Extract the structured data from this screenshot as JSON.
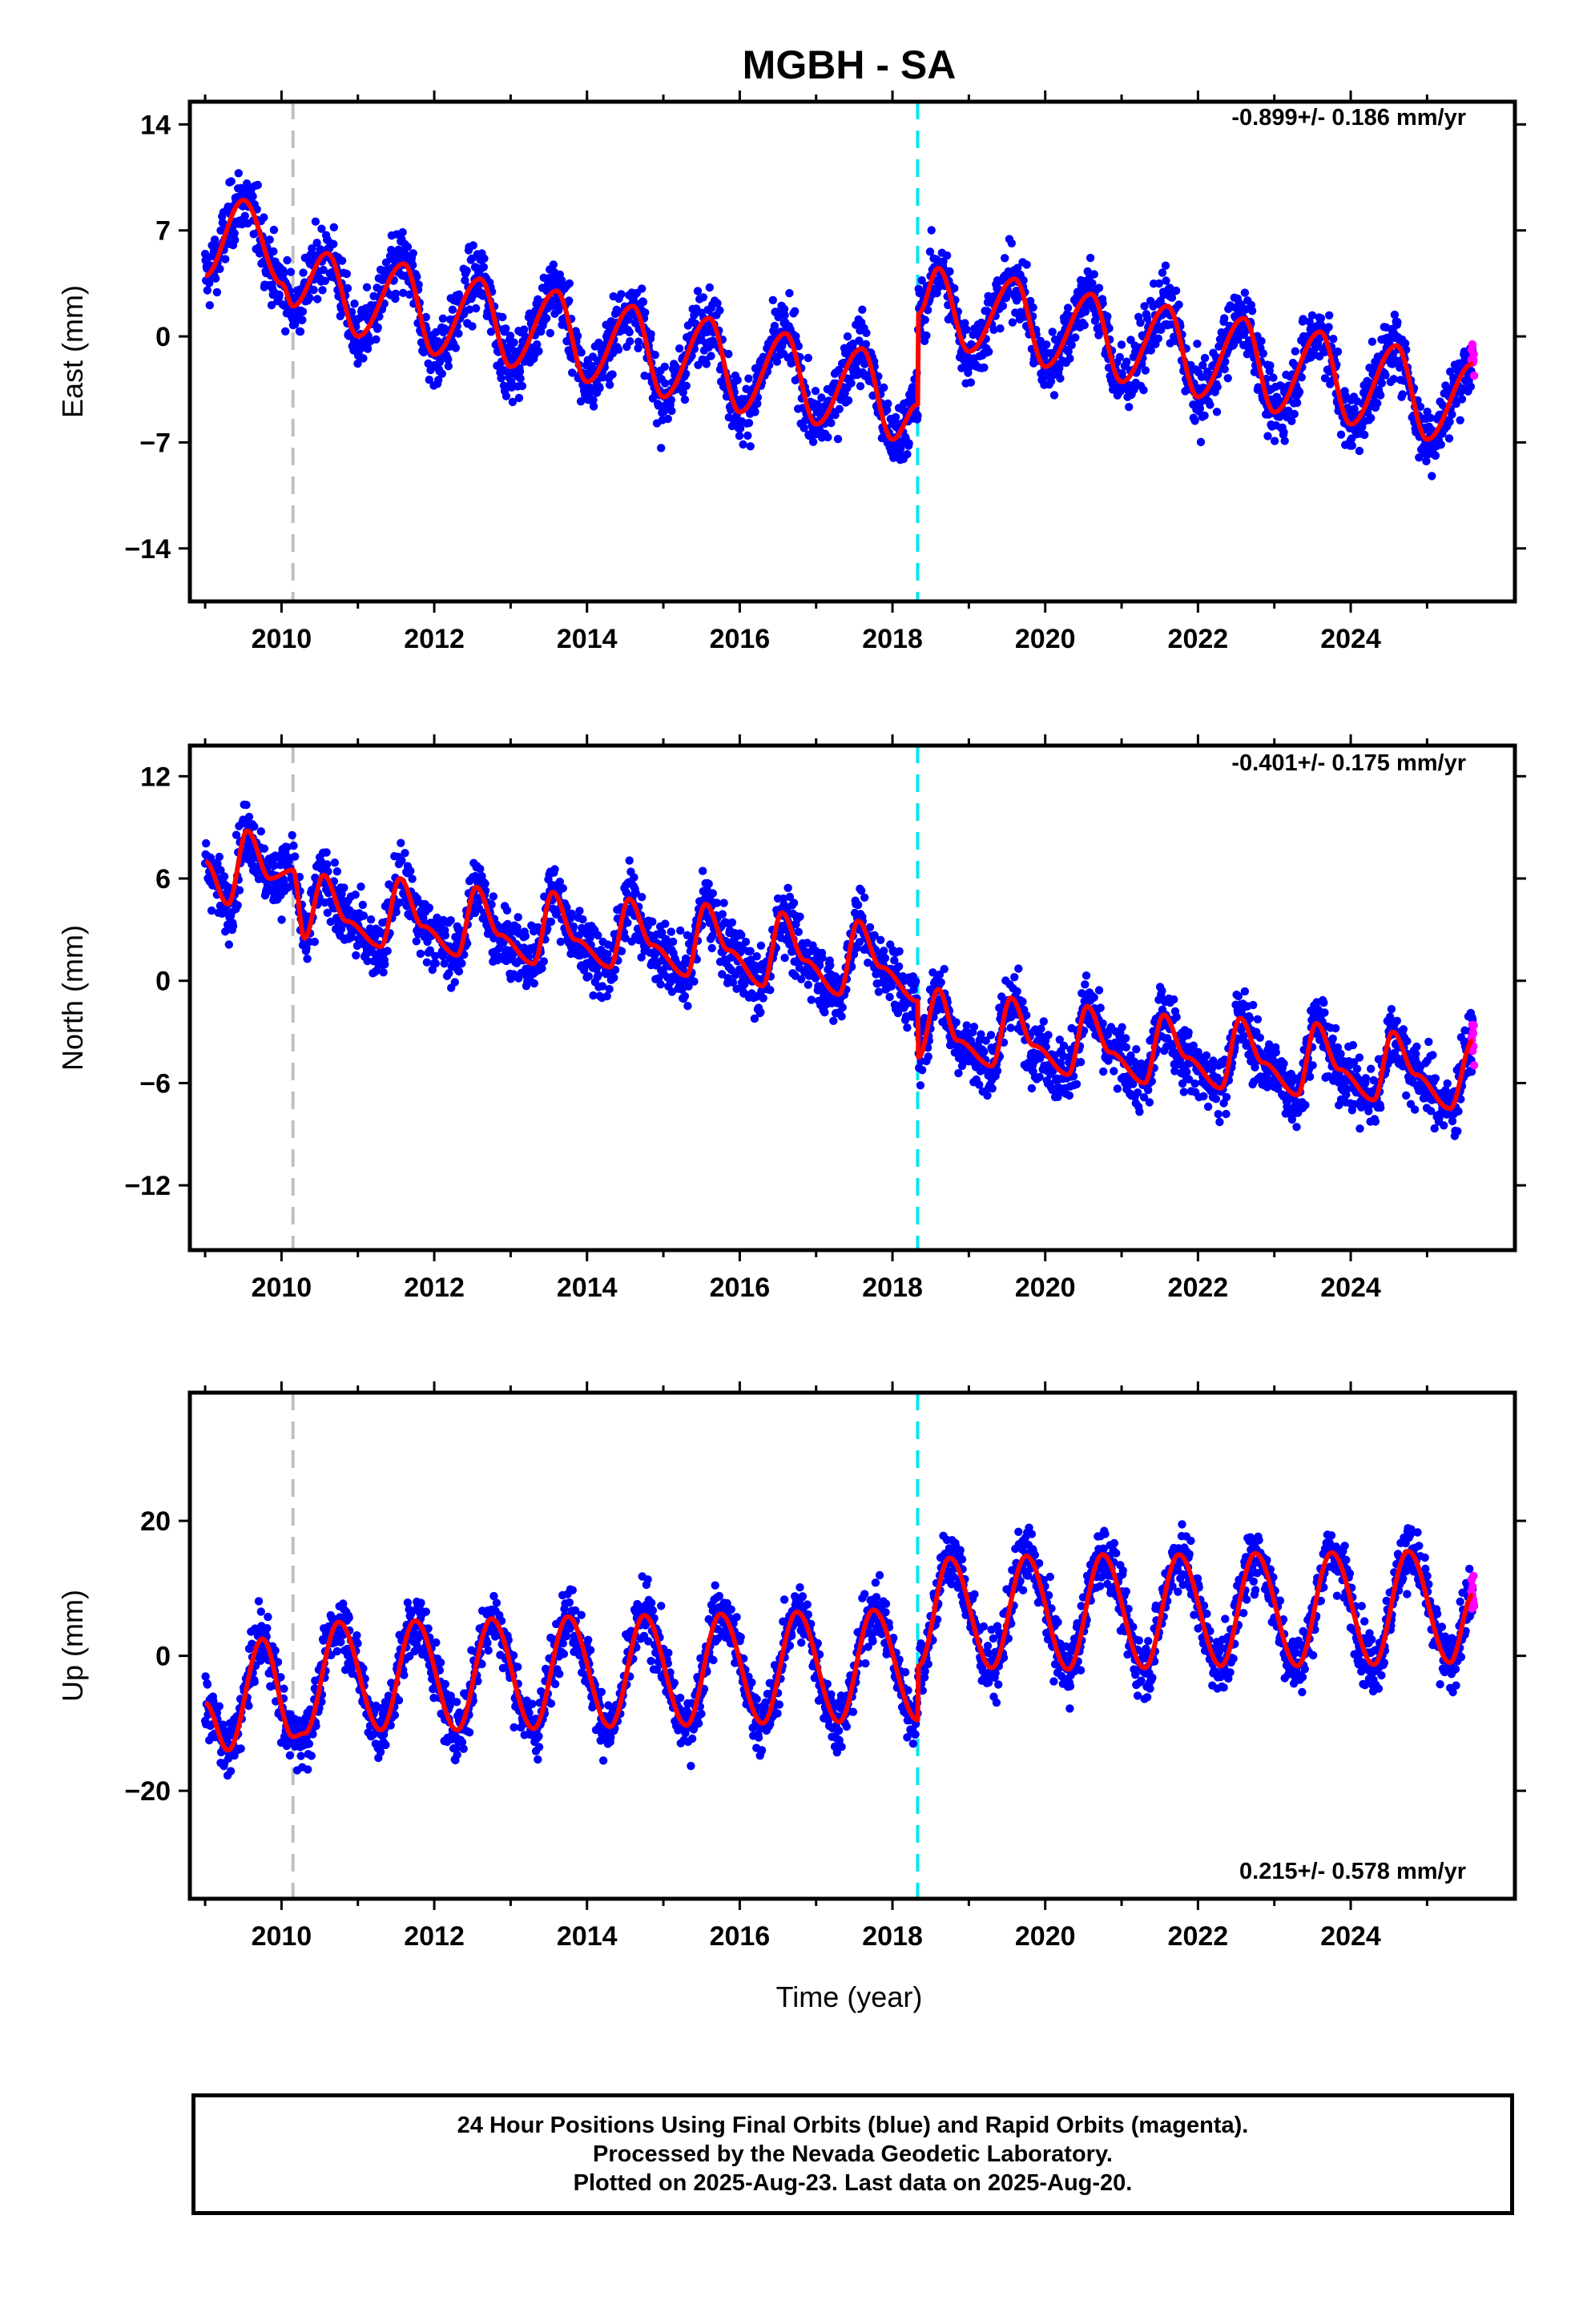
{
  "title": "MGBH - SA",
  "xlabel": "Time (year)",
  "colors": {
    "final_orbits": "#0000ff",
    "rapid_orbits": "#ff00ff",
    "model_fit": "#ff0000",
    "event_gray": "#c0c0c0",
    "event_cyan": "#00e5ee"
  },
  "footer": {
    "line1": "24 Hour Positions Using Final Orbits (blue) and Rapid Orbits (magenta).",
    "line2": "Processed by the Nevada Geodetic Laboratory.",
    "line3": "Plotted on 2025-Aug-23. Last data on 2025-Aug-20."
  },
  "chart_data": [
    {
      "type": "scatter",
      "ylabel": "East (mm)",
      "rate_label": "-0.899+/- 0.186 mm/yr",
      "xlim": [
        2008.8,
        2026.15
      ],
      "ylim": [
        -17.5,
        15.5
      ],
      "yticks": [
        14,
        7,
        0,
        -7,
        -14
      ],
      "xticks": [
        2010,
        2012,
        2014,
        2016,
        2018,
        2020,
        2022,
        2024
      ],
      "event_lines": [
        {
          "x": 2010.15,
          "color": "gray"
        },
        {
          "x": 2018.33,
          "color": "cyan"
        }
      ],
      "model_fit": [
        {
          "x": 2009.0,
          "y": 4.0
        },
        {
          "x": 2009.5,
          "y": 9.0
        },
        {
          "x": 2010.0,
          "y": 3.5
        },
        {
          "x": 2010.15,
          "y": 2.0
        },
        {
          "x": 2010.6,
          "y": 5.5
        },
        {
          "x": 2011.0,
          "y": 0.0
        },
        {
          "x": 2011.6,
          "y": 4.8
        },
        {
          "x": 2012.0,
          "y": -1.2
        },
        {
          "x": 2012.6,
          "y": 3.8
        },
        {
          "x": 2013.0,
          "y": -2.0
        },
        {
          "x": 2013.6,
          "y": 3.0
        },
        {
          "x": 2014.0,
          "y": -3.0
        },
        {
          "x": 2014.6,
          "y": 2.0
        },
        {
          "x": 2015.0,
          "y": -4.0
        },
        {
          "x": 2015.6,
          "y": 1.2
        },
        {
          "x": 2016.0,
          "y": -5.0
        },
        {
          "x": 2016.6,
          "y": 0.2
        },
        {
          "x": 2017.0,
          "y": -5.8
        },
        {
          "x": 2017.6,
          "y": -0.8
        },
        {
          "x": 2018.0,
          "y": -6.8
        },
        {
          "x": 2018.33,
          "y": -4.5
        },
        {
          "x": 2018.34,
          "y": 1.5
        },
        {
          "x": 2018.6,
          "y": 4.5
        },
        {
          "x": 2019.0,
          "y": -1.0
        },
        {
          "x": 2019.6,
          "y": 3.8
        },
        {
          "x": 2020.0,
          "y": -2.0
        },
        {
          "x": 2020.6,
          "y": 2.8
        },
        {
          "x": 2021.0,
          "y": -3.0
        },
        {
          "x": 2021.6,
          "y": 2.0
        },
        {
          "x": 2022.0,
          "y": -4.0
        },
        {
          "x": 2022.6,
          "y": 1.2
        },
        {
          "x": 2023.0,
          "y": -5.0
        },
        {
          "x": 2023.6,
          "y": 0.3
        },
        {
          "x": 2024.0,
          "y": -5.8
        },
        {
          "x": 2024.6,
          "y": -0.6
        },
        {
          "x": 2025.0,
          "y": -6.8
        },
        {
          "x": 2025.6,
          "y": -1.8
        }
      ]
    },
    {
      "type": "scatter",
      "ylabel": "North (mm)",
      "rate_label": "-0.401+/- 0.175 mm/yr",
      "xlim": [
        2008.8,
        2026.15
      ],
      "ylim": [
        -15.8,
        13.8
      ],
      "yticks": [
        12,
        6,
        0,
        -6,
        -12
      ],
      "xticks": [
        2010,
        2012,
        2014,
        2016,
        2018,
        2020,
        2022,
        2024
      ],
      "event_lines": [
        {
          "x": 2010.15,
          "color": "gray"
        },
        {
          "x": 2018.33,
          "color": "cyan"
        }
      ],
      "model_fit": [
        {
          "x": 2009.0,
          "y": 7.0
        },
        {
          "x": 2009.3,
          "y": 4.5
        },
        {
          "x": 2009.55,
          "y": 8.8
        },
        {
          "x": 2009.85,
          "y": 6.0
        },
        {
          "x": 2010.15,
          "y": 6.5
        },
        {
          "x": 2010.3,
          "y": 2.5
        },
        {
          "x": 2010.55,
          "y": 6.2
        },
        {
          "x": 2010.85,
          "y": 3.5
        },
        {
          "x": 2011.3,
          "y": 2.0
        },
        {
          "x": 2011.55,
          "y": 6.0
        },
        {
          "x": 2011.85,
          "y": 3.2
        },
        {
          "x": 2012.3,
          "y": 1.5
        },
        {
          "x": 2012.55,
          "y": 5.5
        },
        {
          "x": 2012.85,
          "y": 2.7
        },
        {
          "x": 2013.3,
          "y": 1.0
        },
        {
          "x": 2013.55,
          "y": 5.2
        },
        {
          "x": 2013.85,
          "y": 2.4
        },
        {
          "x": 2014.3,
          "y": 0.8
        },
        {
          "x": 2014.55,
          "y": 4.8
        },
        {
          "x": 2014.85,
          "y": 2.1
        },
        {
          "x": 2015.3,
          "y": 0.3
        },
        {
          "x": 2015.55,
          "y": 4.5
        },
        {
          "x": 2015.85,
          "y": 1.8
        },
        {
          "x": 2016.3,
          "y": -0.3
        },
        {
          "x": 2016.55,
          "y": 4.0
        },
        {
          "x": 2016.85,
          "y": 1.2
        },
        {
          "x": 2017.3,
          "y": -0.8
        },
        {
          "x": 2017.55,
          "y": 3.5
        },
        {
          "x": 2017.85,
          "y": 0.8
        },
        {
          "x": 2018.33,
          "y": -1.2
        },
        {
          "x": 2018.34,
          "y": -4.5
        },
        {
          "x": 2018.6,
          "y": -0.5
        },
        {
          "x": 2018.85,
          "y": -3.5
        },
        {
          "x": 2019.3,
          "y": -5.0
        },
        {
          "x": 2019.55,
          "y": -1.0
        },
        {
          "x": 2019.85,
          "y": -3.8
        },
        {
          "x": 2020.3,
          "y": -5.5
        },
        {
          "x": 2020.55,
          "y": -1.5
        },
        {
          "x": 2020.85,
          "y": -4.2
        },
        {
          "x": 2021.3,
          "y": -6.0
        },
        {
          "x": 2021.55,
          "y": -2.0
        },
        {
          "x": 2021.85,
          "y": -4.5
        },
        {
          "x": 2022.3,
          "y": -6.3
        },
        {
          "x": 2022.55,
          "y": -2.2
        },
        {
          "x": 2022.85,
          "y": -4.8
        },
        {
          "x": 2023.3,
          "y": -6.7
        },
        {
          "x": 2023.55,
          "y": -2.5
        },
        {
          "x": 2023.85,
          "y": -5.2
        },
        {
          "x": 2024.3,
          "y": -7.0
        },
        {
          "x": 2024.55,
          "y": -3.0
        },
        {
          "x": 2024.85,
          "y": -5.5
        },
        {
          "x": 2025.3,
          "y": -7.5
        },
        {
          "x": 2025.6,
          "y": -3.5
        }
      ]
    },
    {
      "type": "scatter",
      "ylabel": "Up (mm)",
      "rate_label": "0.215+/- 0.578 mm/yr",
      "xlim": [
        2008.8,
        2026.15
      ],
      "ylim": [
        -36,
        39
      ],
      "yticks": [
        20,
        0,
        -20
      ],
      "xticks": [
        2010,
        2012,
        2014,
        2016,
        2018,
        2020,
        2022,
        2024
      ],
      "event_lines": [
        {
          "x": 2010.15,
          "color": "gray"
        },
        {
          "x": 2018.33,
          "color": "cyan"
        }
      ],
      "model_fit": [
        {
          "x": 2009.0,
          "y": -7.0
        },
        {
          "x": 2009.3,
          "y": -14.0
        },
        {
          "x": 2009.75,
          "y": 2.5
        },
        {
          "x": 2010.15,
          "y": -12.0
        },
        {
          "x": 2010.3,
          "y": -11.5
        },
        {
          "x": 2010.75,
          "y": 5.0
        },
        {
          "x": 2011.3,
          "y": -11.0
        },
        {
          "x": 2011.75,
          "y": 5.2
        },
        {
          "x": 2012.3,
          "y": -11.0
        },
        {
          "x": 2012.75,
          "y": 5.5
        },
        {
          "x": 2013.3,
          "y": -10.8
        },
        {
          "x": 2013.75,
          "y": 5.8
        },
        {
          "x": 2014.3,
          "y": -10.5
        },
        {
          "x": 2014.75,
          "y": 6.0
        },
        {
          "x": 2015.3,
          "y": -10.3
        },
        {
          "x": 2015.75,
          "y": 6.2
        },
        {
          "x": 2016.3,
          "y": -10.0
        },
        {
          "x": 2016.75,
          "y": 6.5
        },
        {
          "x": 2017.3,
          "y": -9.8
        },
        {
          "x": 2017.75,
          "y": 6.8
        },
        {
          "x": 2018.33,
          "y": -9.5
        },
        {
          "x": 2018.34,
          "y": -1.5
        },
        {
          "x": 2018.75,
          "y": 14.5
        },
        {
          "x": 2019.3,
          "y": -1.8
        },
        {
          "x": 2019.75,
          "y": 14.8
        },
        {
          "x": 2020.3,
          "y": -2.0
        },
        {
          "x": 2020.75,
          "y": 15.0
        },
        {
          "x": 2021.3,
          "y": -1.8
        },
        {
          "x": 2021.75,
          "y": 15.0
        },
        {
          "x": 2022.3,
          "y": -1.5
        },
        {
          "x": 2022.75,
          "y": 15.2
        },
        {
          "x": 2023.3,
          "y": -1.5
        },
        {
          "x": 2023.75,
          "y": 15.3
        },
        {
          "x": 2024.3,
          "y": -1.3
        },
        {
          "x": 2024.75,
          "y": 15.5
        },
        {
          "x": 2025.3,
          "y": -1.0
        },
        {
          "x": 2025.6,
          "y": 9.0
        }
      ]
    }
  ]
}
